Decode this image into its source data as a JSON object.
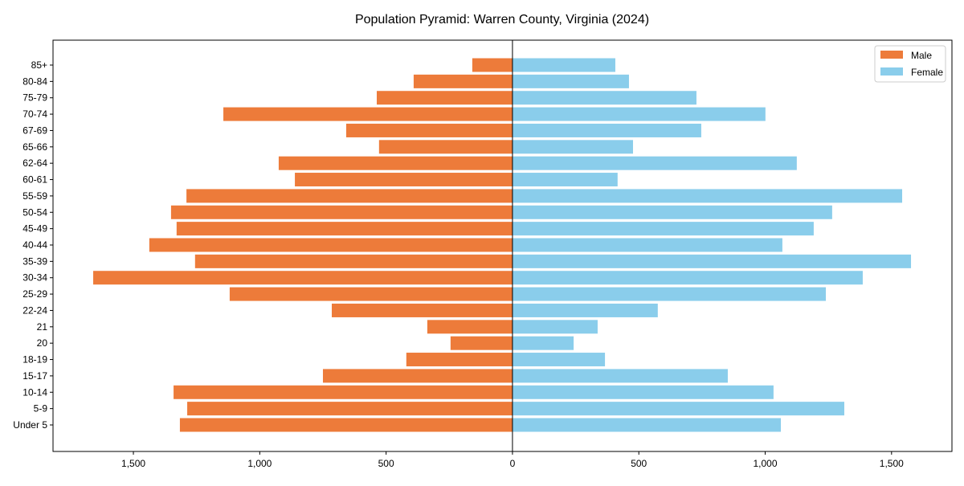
{
  "chart_data": {
    "type": "bar",
    "orientation": "horizontal-pyramid",
    "title": "Population Pyramid: Warren County, Virginia (2024)",
    "xlabel": "",
    "ylabel": "",
    "xlim": [
      -1818,
      1739
    ],
    "grid": false,
    "legend_position": "top-right",
    "xticks": [
      -1500,
      -1000,
      -500,
      0,
      500,
      1000,
      1500
    ],
    "xtick_labels": [
      "1,500",
      "1,000",
      "500",
      "0",
      "500",
      "1,000",
      "1,500"
    ],
    "categories": [
      "85+",
      "80-84",
      "75-79",
      "70-74",
      "67-69",
      "65-66",
      "62-64",
      "60-61",
      "55-59",
      "50-54",
      "45-49",
      "40-44",
      "35-39",
      "30-34",
      "25-29",
      "22-24",
      "21",
      "20",
      "18-19",
      "15-17",
      "10-14",
      "5-9",
      "Under 5"
    ],
    "series": [
      {
        "name": "Male",
        "color": "#ED7B3A",
        "values": [
          159,
          391,
          537,
          1144,
          658,
          528,
          925,
          861,
          1290,
          1351,
          1329,
          1437,
          1256,
          1659,
          1119,
          715,
          337,
          245,
          420,
          750,
          1341,
          1287,
          1316
        ]
      },
      {
        "name": "Female",
        "color": "#8ACDEB",
        "values": [
          407,
          461,
          728,
          1001,
          747,
          477,
          1125,
          416,
          1542,
          1265,
          1192,
          1068,
          1577,
          1386,
          1240,
          575,
          337,
          242,
          366,
          852,
          1033,
          1313,
          1062
        ]
      }
    ]
  }
}
